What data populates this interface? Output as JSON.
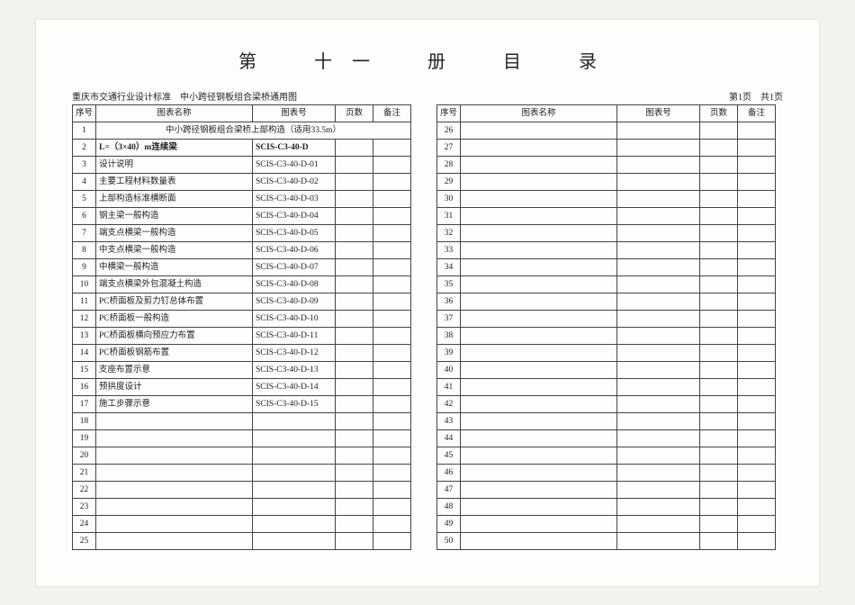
{
  "title": "第　十一　册　目　录",
  "header_left": "重庆市交通行业设计标准　中小跨径钢板组合梁桥通用图",
  "header_right": "第1页　共1页",
  "columns": {
    "seq": "序号",
    "name": "图表名称",
    "code": "图表号",
    "page": "页数",
    "note": "备注"
  },
  "left_rows": [
    {
      "seq": "1",
      "name": "中小跨径钢板组合梁桥上部构造（适用33.5m）",
      "code": "",
      "page": "",
      "note": "",
      "span_name": true,
      "center": true
    },
    {
      "seq": "2",
      "name": "L=（3×40）m连续梁",
      "code": "SCIS-C3-40-D",
      "page": "",
      "note": "",
      "bold": true
    },
    {
      "seq": "3",
      "name": "设计说明",
      "code": "SCIS-C3-40-D-01",
      "page": "",
      "note": ""
    },
    {
      "seq": "4",
      "name": "主要工程材料数量表",
      "code": "SCIS-C3-40-D-02",
      "page": "",
      "note": ""
    },
    {
      "seq": "5",
      "name": "上部构造标准横断面",
      "code": "SCIS-C3-40-D-03",
      "page": "",
      "note": ""
    },
    {
      "seq": "6",
      "name": "钢主梁一般构造",
      "code": "SCIS-C3-40-D-04",
      "page": "",
      "note": ""
    },
    {
      "seq": "7",
      "name": "端支点横梁一般构造",
      "code": "SCIS-C3-40-D-05",
      "page": "",
      "note": ""
    },
    {
      "seq": "8",
      "name": "中支点横梁一般构造",
      "code": "SCIS-C3-40-D-06",
      "page": "",
      "note": ""
    },
    {
      "seq": "9",
      "name": "中横梁一般构造",
      "code": "SCIS-C3-40-D-07",
      "page": "",
      "note": ""
    },
    {
      "seq": "10",
      "name": "端支点横梁外包混凝土构造",
      "code": "SCIS-C3-40-D-08",
      "page": "",
      "note": ""
    },
    {
      "seq": "11",
      "name": "PC桥面板及剪力钉总体布置",
      "code": "SCIS-C3-40-D-09",
      "page": "",
      "note": ""
    },
    {
      "seq": "12",
      "name": "PC桥面板一般构造",
      "code": "SCIS-C3-40-D-10",
      "page": "",
      "note": ""
    },
    {
      "seq": "13",
      "name": "PC桥面板横向预应力布置",
      "code": "SCIS-C3-40-D-11",
      "page": "",
      "note": ""
    },
    {
      "seq": "14",
      "name": "PC桥面板钢筋布置",
      "code": "SCIS-C3-40-D-12",
      "page": "",
      "note": ""
    },
    {
      "seq": "15",
      "name": "支座布置示意",
      "code": "SCIS-C3-40-D-13",
      "page": "",
      "note": ""
    },
    {
      "seq": "16",
      "name": "预拱度设计",
      "code": "SCIS-C3-40-D-14",
      "page": "",
      "note": ""
    },
    {
      "seq": "17",
      "name": "施工步骤示意",
      "code": "SCIS-C3-40-D-15",
      "page": "",
      "note": ""
    },
    {
      "seq": "18",
      "name": "",
      "code": "",
      "page": "",
      "note": ""
    },
    {
      "seq": "19",
      "name": "",
      "code": "",
      "page": "",
      "note": ""
    },
    {
      "seq": "20",
      "name": "",
      "code": "",
      "page": "",
      "note": ""
    },
    {
      "seq": "21",
      "name": "",
      "code": "",
      "page": "",
      "note": ""
    },
    {
      "seq": "22",
      "name": "",
      "code": "",
      "page": "",
      "note": ""
    },
    {
      "seq": "23",
      "name": "",
      "code": "",
      "page": "",
      "note": ""
    },
    {
      "seq": "24",
      "name": "",
      "code": "",
      "page": "",
      "note": ""
    },
    {
      "seq": "25",
      "name": "",
      "code": "",
      "page": "",
      "note": ""
    }
  ],
  "right_start": 26,
  "right_end": 50
}
